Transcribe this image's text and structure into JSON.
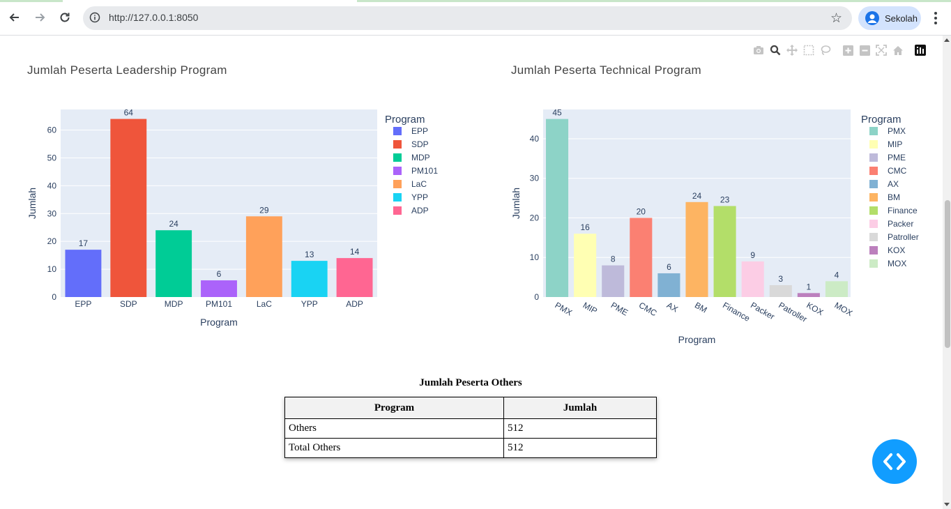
{
  "browser": {
    "url": "http://127.0.0.1:8050",
    "profile_name": "Sekolah",
    "icons": {
      "back": "arrow-left-icon",
      "forward": "arrow-right-icon",
      "reload": "reload-icon",
      "info": "info-icon",
      "bookmark": "star-icon",
      "menu": "kebab-menu-icon"
    }
  },
  "modebar": [
    "camera-icon",
    "zoom-icon",
    "pan-icon",
    "box-select-icon",
    "lasso-icon",
    "zoom-in-icon",
    "zoom-out-icon",
    "autoscale-icon",
    "reset-axes-icon",
    "plotly-logo-icon"
  ],
  "charts": {
    "leadership": {
      "title": "Jumlah Peserta Leadership Program",
      "legend_title": "Program"
    },
    "technical": {
      "title": "Jumlah Peserta Technical Program",
      "legend_title": "Program"
    }
  },
  "chart_data": [
    {
      "type": "bar",
      "title": "Jumlah Peserta Leadership Program",
      "xlabel": "Program",
      "ylabel": "Jumlah",
      "categories": [
        "EPP",
        "SDP",
        "MDP",
        "PM101",
        "LaC",
        "YPP",
        "ADP"
      ],
      "values": [
        17,
        64,
        24,
        6,
        29,
        13,
        14
      ],
      "colors": [
        "#636efa",
        "#ef553b",
        "#00cc96",
        "#ab63fa",
        "#ffa15a",
        "#19d3f3",
        "#ff6692"
      ],
      "ylim": [
        0,
        67.4
      ],
      "yticks": [
        0,
        10,
        20,
        30,
        40,
        50,
        60
      ],
      "legend_title": "Program",
      "legend_position": "right",
      "grid": true
    },
    {
      "type": "bar",
      "title": "Jumlah Peserta Technical Program",
      "xlabel": "Program",
      "ylabel": "Jumlah",
      "categories": [
        "PMX",
        "MIP",
        "PME",
        "CMC",
        "AX",
        "BM",
        "Finance",
        "Packer",
        "Patroller",
        "KOX",
        "MOX"
      ],
      "values": [
        45,
        16,
        8,
        20,
        6,
        24,
        23,
        9,
        3,
        1,
        4
      ],
      "colors": [
        "#8dd3c7",
        "#ffffb3",
        "#bebada",
        "#fb8072",
        "#80b1d3",
        "#fdb462",
        "#b3de69",
        "#fccde5",
        "#d9d9d9",
        "#bc80bd",
        "#ccebc5"
      ],
      "ylim": [
        0,
        47.4
      ],
      "yticks": [
        0,
        10,
        20,
        30,
        40
      ],
      "legend_title": "Program",
      "legend_position": "right",
      "grid": true
    }
  ],
  "others_table": {
    "title": "Jumlah Peserta Others",
    "headers": [
      "Program",
      "Jumlah"
    ],
    "rows": [
      [
        "Others",
        "512"
      ],
      [
        "Total Others",
        "512"
      ]
    ]
  },
  "fab_icon": "code-brackets-icon"
}
